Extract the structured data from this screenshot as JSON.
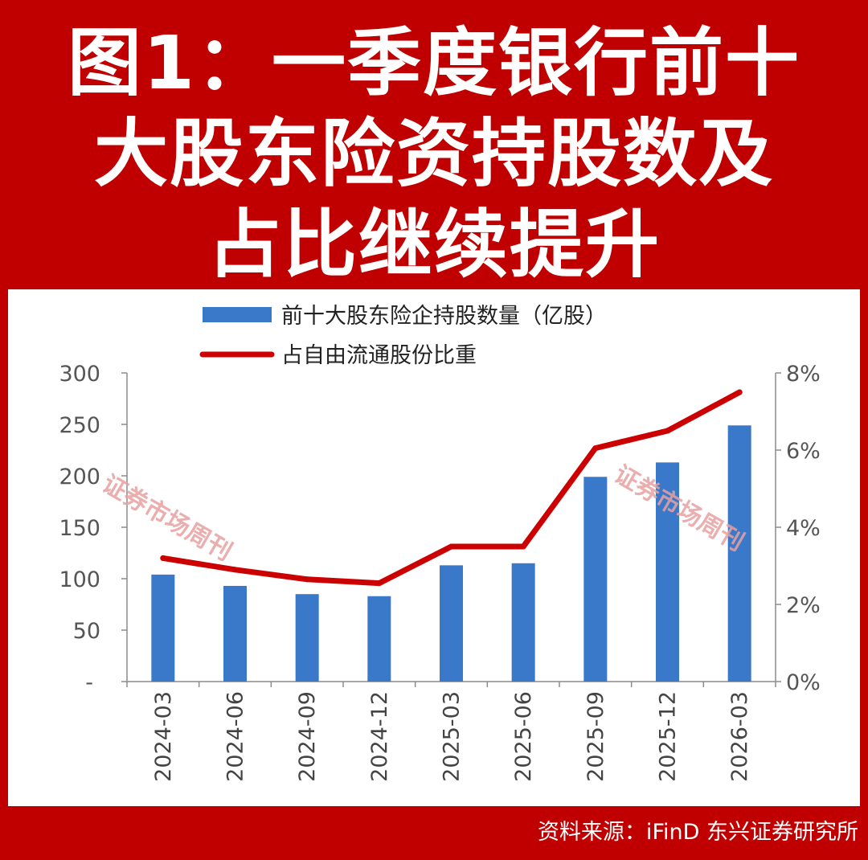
{
  "title_lines": [
    "图1：一季度银行前十",
    "大股东险资持股数及",
    "占比继续提升"
  ],
  "source": "资料来源：iFinD 东兴证券研究所",
  "watermark": "证券市场周刊",
  "colors": {
    "bar": "#3a78c9",
    "line": "#cc0000",
    "background": "#c00000"
  },
  "chart_data": {
    "type": "bar",
    "categories": [
      "2024-03",
      "2024-06",
      "2024-09",
      "2024-12",
      "2025-03",
      "2025-06",
      "2025-09",
      "2025-12",
      "2026-03"
    ],
    "series": [
      {
        "name": "前十大股东险企持股数量（亿股）",
        "type": "bar",
        "axis": "left",
        "values": [
          104,
          93,
          85,
          83,
          113,
          115,
          199,
          213,
          249
        ]
      },
      {
        "name": "占自由流通股份比重",
        "type": "line",
        "axis": "right",
        "values": [
          3.2,
          2.9,
          2.65,
          2.55,
          3.5,
          3.5,
          6.05,
          6.5,
          7.5
        ]
      }
    ],
    "y_left": {
      "min": 0,
      "max": 300,
      "ticks": [
        "-",
        "50",
        "100",
        "150",
        "200",
        "250",
        "300"
      ]
    },
    "y_right": {
      "min": 0,
      "max": 8,
      "ticks": [
        "0%",
        "2%",
        "4%",
        "6%",
        "8%"
      ]
    },
    "legend_position": "top-center",
    "grid": false
  }
}
